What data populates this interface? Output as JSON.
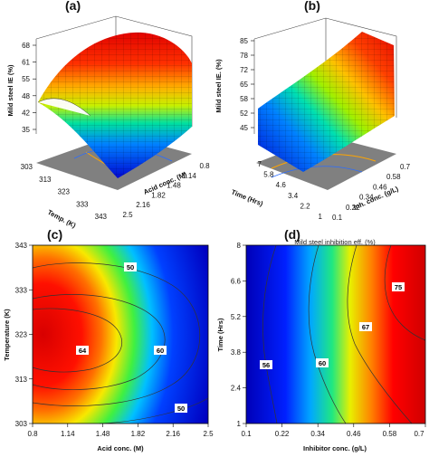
{
  "panels": [
    {
      "id": "a",
      "label": "(a)"
    },
    {
      "id": "b",
      "label": "(b)"
    },
    {
      "id": "c",
      "label": "(c)"
    },
    {
      "id": "d",
      "label": "(d)"
    }
  ],
  "chart_data": [
    {
      "panel": "(a)",
      "type": "surface",
      "zlabel": "Mild steel IE (%)",
      "xlabel": "Temp. (K)",
      "ylabel": "Acid conc. (M)",
      "zticks": [
        "35",
        "42",
        "48",
        "55",
        "61",
        "68"
      ],
      "xticks": [
        "303",
        "313",
        "323",
        "333",
        "343"
      ],
      "yticks": [
        "0.8",
        "1.14",
        "1.48",
        "1.82",
        "2.16",
        "2.5"
      ],
      "zlim": [
        35,
        68
      ],
      "peak": {
        "temp": 323,
        "acid": 0.8,
        "ie": 68
      }
    },
    {
      "panel": "(b)",
      "type": "surface",
      "zlabel": "Mild steel IE. (%)",
      "xlabel": "Time (Hrs)",
      "ylabel": "Inh. conc. (g/L)",
      "zticks": [
        "45",
        "52",
        "58",
        "65",
        "72",
        "78",
        "85"
      ],
      "xticks": [
        "1",
        "2.2",
        "3.4",
        "4.6",
        "5.8",
        "7"
      ],
      "yticks": [
        "0.1",
        "0.22",
        "0.34",
        "0.46",
        "0.58",
        "0.7"
      ],
      "zlim": [
        45,
        85
      ],
      "peak": {
        "time": 7,
        "inh": 0.7,
        "ie": 85
      }
    },
    {
      "panel": "(c)",
      "type": "heatmap",
      "xlabel": "Acid conc. (M)",
      "ylabel": "Temperature (K)",
      "xticks": [
        "0.8",
        "1.14",
        "1.48",
        "1.82",
        "2.16",
        "2.5"
      ],
      "yticks": [
        "303",
        "313",
        "323",
        "333",
        "343"
      ],
      "xlim": [
        0.8,
        2.5
      ],
      "ylim": [
        303,
        343
      ],
      "contours": [
        {
          "level": 50,
          "label": "50"
        },
        {
          "level": 60,
          "label": "60"
        },
        {
          "level": 64,
          "label": "64"
        }
      ]
    },
    {
      "panel": "(d)",
      "type": "heatmap",
      "title": "Mild steel inhibition eff. (%)",
      "xlabel": "Inhibitor conc. (g/L)",
      "ylabel": "Time (Hrs)",
      "xticks": [
        "0.1",
        "0.22",
        "0.34",
        "0.46",
        "0.58",
        "0.7"
      ],
      "yticks": [
        "1",
        "2.4",
        "3.8",
        "5.2",
        "6.6",
        "8"
      ],
      "xlim": [
        0.1,
        0.7
      ],
      "ylim": [
        1,
        8
      ],
      "contours": [
        {
          "level": 56,
          "label": "56"
        },
        {
          "level": 60,
          "label": "60"
        },
        {
          "level": 67,
          "label": "67"
        },
        {
          "level": 75,
          "label": "75"
        }
      ]
    }
  ]
}
